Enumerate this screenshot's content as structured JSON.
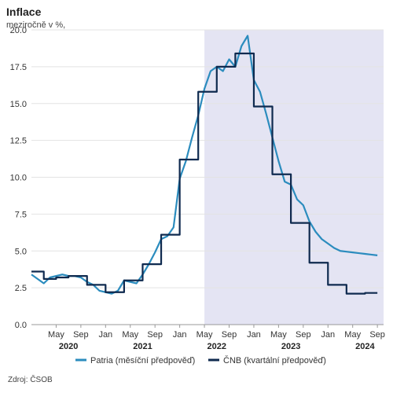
{
  "header": {
    "title": "Inflace",
    "subtitle": "meziročně v %,"
  },
  "footer": {
    "source": "Zdroj: ČSOB"
  },
  "chart_data": {
    "type": "line",
    "title": "Inflace",
    "subtitle": "meziročně v %,",
    "xlabel": "",
    "ylabel": "",
    "ylim": [
      0,
      20
    ],
    "yticks": [
      "0.0",
      "2.5",
      "5.0",
      "7.5",
      "10.0",
      "12.5",
      "15.0",
      "17.5",
      "20.0"
    ],
    "xlim": [
      "2020-01",
      "2024-10"
    ],
    "xtick_labels": [
      {
        "month": "2020-05",
        "label": "May"
      },
      {
        "month": "2020-09",
        "label": "Sep"
      },
      {
        "month": "2021-01",
        "label": "Jan"
      },
      {
        "month": "2021-05",
        "label": "May"
      },
      {
        "month": "2021-09",
        "label": "Sep"
      },
      {
        "month": "2022-01",
        "label": "Jan"
      },
      {
        "month": "2022-05",
        "label": "May"
      },
      {
        "month": "2022-09",
        "label": "Sep"
      },
      {
        "month": "2023-01",
        "label": "Jan"
      },
      {
        "month": "2023-05",
        "label": "May"
      },
      {
        "month": "2023-09",
        "label": "Sep"
      },
      {
        "month": "2024-01",
        "label": "Jan"
      },
      {
        "month": "2024-05",
        "label": "May"
      },
      {
        "month": "2024-09",
        "label": "Sep"
      }
    ],
    "year_labels": [
      {
        "month": "2020-07",
        "label": "2020"
      },
      {
        "month": "2021-07",
        "label": "2021"
      },
      {
        "month": "2022-07",
        "label": "2022"
      },
      {
        "month": "2023-07",
        "label": "2023"
      },
      {
        "month": "2024-07",
        "label": "2024"
      }
    ],
    "shaded_region": {
      "from": "2022-05",
      "to": "2024-10",
      "color": "#e4e4f3"
    },
    "grid": true,
    "legend_position": "bottom",
    "series": [
      {
        "name": "Patria (měsíční předpověď)",
        "color": "#2b8cbe",
        "step": false,
        "points": [
          [
            "2020-01",
            3.4
          ],
          [
            "2020-02",
            3.1
          ],
          [
            "2020-03",
            2.8
          ],
          [
            "2020-04",
            3.2
          ],
          [
            "2020-05",
            3.3
          ],
          [
            "2020-06",
            3.4
          ],
          [
            "2020-07",
            3.3
          ],
          [
            "2020-08",
            3.3
          ],
          [
            "2020-09",
            3.2
          ],
          [
            "2020-10",
            2.9
          ],
          [
            "2020-11",
            2.7
          ],
          [
            "2020-12",
            2.3
          ],
          [
            "2021-01",
            2.2
          ],
          [
            "2021-02",
            2.1
          ],
          [
            "2021-03",
            2.3
          ],
          [
            "2021-04",
            3.0
          ],
          [
            "2021-05",
            2.9
          ],
          [
            "2021-06",
            2.8
          ],
          [
            "2021-07",
            3.4
          ],
          [
            "2021-08",
            4.1
          ],
          [
            "2021-09",
            4.9
          ],
          [
            "2021-10",
            5.8
          ],
          [
            "2021-11",
            6.0
          ],
          [
            "2021-12",
            6.6
          ],
          [
            "2022-01",
            9.9
          ],
          [
            "2022-02",
            11.1
          ],
          [
            "2022-03",
            12.7
          ],
          [
            "2022-04",
            14.2
          ],
          [
            "2022-05",
            16.0
          ],
          [
            "2022-06",
            17.2
          ],
          [
            "2022-07",
            17.5
          ],
          [
            "2022-08",
            17.2
          ],
          [
            "2022-09",
            18.0
          ],
          [
            "2022-10",
            17.5
          ],
          [
            "2022-11",
            18.9
          ],
          [
            "2022-12",
            19.6
          ],
          [
            "2023-01",
            16.6
          ],
          [
            "2023-02",
            15.8
          ],
          [
            "2023-03",
            14.3
          ],
          [
            "2023-04",
            12.7
          ],
          [
            "2023-05",
            11.1
          ],
          [
            "2023-06",
            9.7
          ],
          [
            "2023-07",
            9.5
          ],
          [
            "2023-08",
            8.5
          ],
          [
            "2023-09",
            8.1
          ],
          [
            "2023-10",
            7.0
          ],
          [
            "2023-11",
            6.3
          ],
          [
            "2023-12",
            5.8
          ],
          [
            "2024-01",
            5.5
          ],
          [
            "2024-02",
            5.2
          ],
          [
            "2024-03",
            5.0
          ],
          [
            "2024-04",
            4.95
          ],
          [
            "2024-05",
            4.9
          ],
          [
            "2024-06",
            4.85
          ],
          [
            "2024-07",
            4.8
          ],
          [
            "2024-08",
            4.75
          ],
          [
            "2024-09",
            4.7
          ]
        ]
      },
      {
        "name": "ČNB (kvartální předpověď)",
        "color": "#0f2a4f",
        "step": true,
        "points": [
          [
            "2020-01",
            3.6
          ],
          [
            "2020-03",
            3.1
          ],
          [
            "2020-05",
            3.2
          ],
          [
            "2020-07",
            3.3
          ],
          [
            "2020-10",
            2.7
          ],
          [
            "2021-01",
            2.2
          ],
          [
            "2021-04",
            3.0
          ],
          [
            "2021-07",
            4.1
          ],
          [
            "2021-10",
            6.1
          ],
          [
            "2022-01",
            11.2
          ],
          [
            "2022-04",
            15.8
          ],
          [
            "2022-07",
            17.5
          ],
          [
            "2022-10",
            18.4
          ],
          [
            "2023-01",
            14.8
          ],
          [
            "2023-04",
            10.2
          ],
          [
            "2023-07",
            6.9
          ],
          [
            "2023-10",
            4.2
          ],
          [
            "2024-01",
            2.7
          ],
          [
            "2024-04",
            2.1
          ],
          [
            "2024-07",
            2.15
          ],
          [
            "2024-09",
            2.15
          ]
        ]
      }
    ]
  }
}
